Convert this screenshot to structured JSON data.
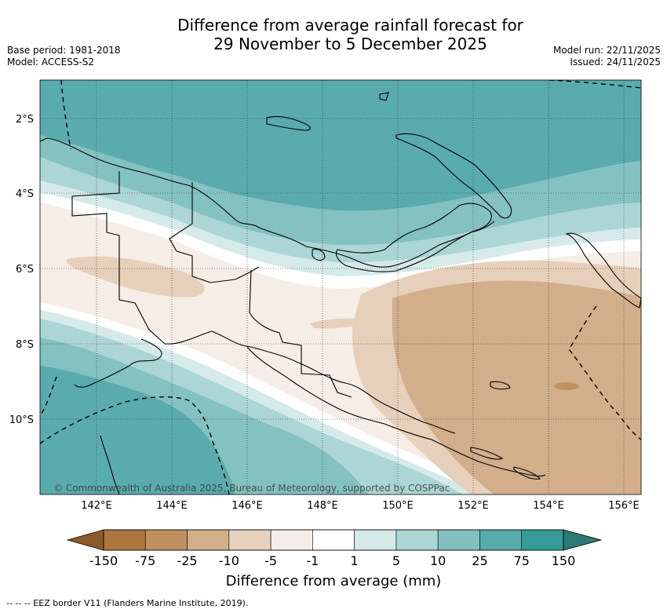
{
  "title": {
    "line1": "Difference from average rainfall forecast for",
    "line2": "29 November to 5 December 2025"
  },
  "meta_left": {
    "base_period": "Base period: 1981-2018",
    "model": "Model: ACCESS-S2"
  },
  "meta_right": {
    "model_run": "Model run: 22/11/2025",
    "issued": "Issued: 24/11/2025"
  },
  "map": {
    "lat_labels": [
      "2°S",
      "4°S",
      "6°S",
      "8°S",
      "10°S"
    ],
    "lon_labels": [
      "142°E",
      "144°E",
      "146°E",
      "148°E",
      "150°E",
      "152°E",
      "154°E",
      "156°E"
    ],
    "copyright": "© Commonwealth of Australia 2025, Bureau of Meteorology, supported by COSPPac"
  },
  "colorbar": {
    "labels": [
      "-150",
      "-75",
      "-25",
      "-10",
      "-5",
      "-1",
      "1",
      "5",
      "10",
      "25",
      "75",
      "150"
    ],
    "colors": [
      "#8c5a2b",
      "#ad763f",
      "#c0915f",
      "#d3ae8a",
      "#e7d0bc",
      "#f5ede6",
      "#ffffff",
      "#d5e9e9",
      "#acd5d5",
      "#82c0c0",
      "#57abab",
      "#349b98",
      "#2c7a77"
    ],
    "title": "Difference from average (mm)"
  },
  "footnote": "--  --  -- EEZ border V11 (Flanders Marine Institute, 2019)."
}
